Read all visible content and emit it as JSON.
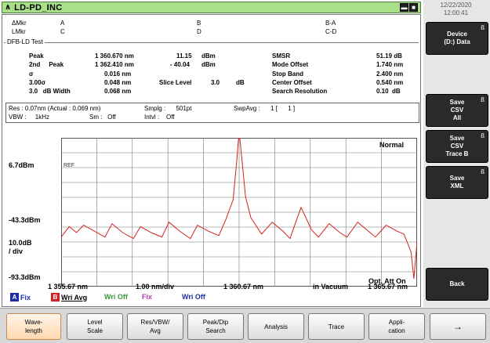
{
  "title": "LD-PD_INC",
  "datetime": {
    "date": "12/22/2020",
    "time": "12:00:41"
  },
  "markers": {
    "row1": [
      "ΔMkr",
      "A",
      "B",
      "B-A"
    ],
    "row2": [
      "LMkr",
      "C",
      "D",
      "C-D"
    ]
  },
  "section": "DFB-LD Test",
  "results_left": [
    {
      "label": "Peak",
      "value": "1 360.670 nm"
    },
    {
      "label": "2nd     Peak",
      "value": "1 362.410 nm"
    },
    {
      "label": "σ",
      "value": "0.016 nm"
    },
    {
      "label": "3.00σ",
      "value": "0.048 nm"
    },
    {
      "label": "3.0   dB Width",
      "value": "0.068 nm"
    }
  ],
  "results_mid": [
    {
      "value": "11.15",
      "unit": "dBm"
    },
    {
      "value": "- 40.04",
      "unit": "dBm"
    }
  ],
  "slice_level": {
    "label": "Slice Level",
    "value": "3.0",
    "unit": "dB"
  },
  "results_right": [
    {
      "label": "SMSR",
      "value": "51.19 dB"
    },
    {
      "label": "Mode Offset",
      "value": "1.740 nm"
    },
    {
      "label": "Stop Band",
      "value": "2.400 nm"
    },
    {
      "label": "Center Offset",
      "value": "0.540 nm"
    },
    {
      "label": "Search Resolution",
      "value": "0.10  dB"
    }
  ],
  "settings": {
    "res": "Res : 0.07nm (Actual : 0.069 nm)",
    "smplg": "Smplg :      501pt",
    "swpavg": "SwpAvg :      1 [      1 ]",
    "vbw": "VBW :     1kHz",
    "sm": "Sm :   Off",
    "intvl": "Intvl :    Off"
  },
  "chart": {
    "ref_level": "6.7dBm",
    "ref_marker": "REF",
    "low_level": "-43.3dBm",
    "scale": "10.0dB",
    "scale_unit": "/ div",
    "bottom_level": "-93.3dBm",
    "mode_label": "Normal",
    "att_label": "Opt. Att On",
    "x_start": "1 355.67 nm",
    "x_div": "1.00 nm/div",
    "x_center": "1 360.67 nm",
    "x_medium": "in Vacuum",
    "x_stop": "1 365.67 nm",
    "trace_color": "#d42020"
  },
  "chart_data": {
    "type": "line",
    "xlabel": "",
    "ylabel": "",
    "xlim": [
      1355.67,
      1365.67
    ],
    "ylim": [
      -93.3,
      6.7
    ],
    "series": [
      {
        "x": [
          1355.67,
          1355.9,
          1356.1,
          1356.3,
          1356.6,
          1356.9,
          1357.1,
          1357.4,
          1357.7,
          1357.9,
          1358.2,
          1358.5,
          1358.7,
          1359.0,
          1359.3,
          1359.5,
          1359.8,
          1360.1,
          1360.3,
          1360.5,
          1360.6,
          1360.67,
          1360.75,
          1360.85,
          1361.0,
          1361.3,
          1361.6,
          1361.9,
          1362.1,
          1362.41,
          1362.7,
          1362.9,
          1363.2,
          1363.5,
          1363.7,
          1364.0,
          1364.3,
          1364.5,
          1364.8,
          1365.1,
          1365.3,
          1365.5,
          1365.58,
          1365.67
        ],
        "y": [
          -60,
          -53,
          -57,
          -52,
          -56,
          -60,
          -51,
          -57,
          -61,
          -53,
          -57,
          -60,
          -50,
          -56,
          -61,
          -52,
          -56,
          -59,
          -48,
          -35,
          -10,
          11.15,
          -8,
          -33,
          -47,
          -58,
          -50,
          -56,
          -61,
          -40.04,
          -55,
          -60,
          -51,
          -57,
          -60,
          -50,
          -56,
          -60,
          -52,
          -56,
          -58,
          -70,
          -88,
          -63
        ]
      }
    ]
  },
  "legend": [
    {
      "box": "A",
      "box_color": "#1c2ea8",
      "label": "Fix",
      "label_color": "#1c2ea8"
    },
    {
      "box": "B",
      "box_color": "#d42020",
      "label": "Wri Avg",
      "label_color": "#000000"
    },
    {
      "box": "",
      "box_color": "",
      "label": "Wri Off",
      "label_color": "#3a9a3a"
    },
    {
      "box": "",
      "box_color": "",
      "label": "Fix",
      "label_color": "#b040b0"
    },
    {
      "box": "",
      "box_color": "",
      "label": "Wri Off",
      "label_color": "#1c2ea8"
    }
  ],
  "side_buttons": [
    {
      "line1": "Device",
      "line2": "(D:) Data",
      "line3": ""
    },
    {
      "line1": "Save",
      "line2": "CSV",
      "line3": "All"
    },
    {
      "line1": "Save",
      "line2": "CSV",
      "line3": "Trace B"
    },
    {
      "line1": "Save",
      "line2": "XML",
      "line3": ""
    },
    {
      "line1": "Back",
      "line2": "",
      "line3": ""
    }
  ],
  "bottom_buttons": [
    {
      "line1": "Wave-",
      "line2": "length"
    },
    {
      "line1": "Level",
      "line2": "Scale"
    },
    {
      "line1": "Res/VBW/",
      "line2": "Avg"
    },
    {
      "line1": "Peak/Dip",
      "line2": "Search"
    },
    {
      "line1": "Analysis",
      "line2": ""
    },
    {
      "line1": "Trace",
      "line2": ""
    },
    {
      "line1": "Appli-",
      "line2": "cation"
    },
    {
      "line1": "→",
      "line2": ""
    }
  ]
}
